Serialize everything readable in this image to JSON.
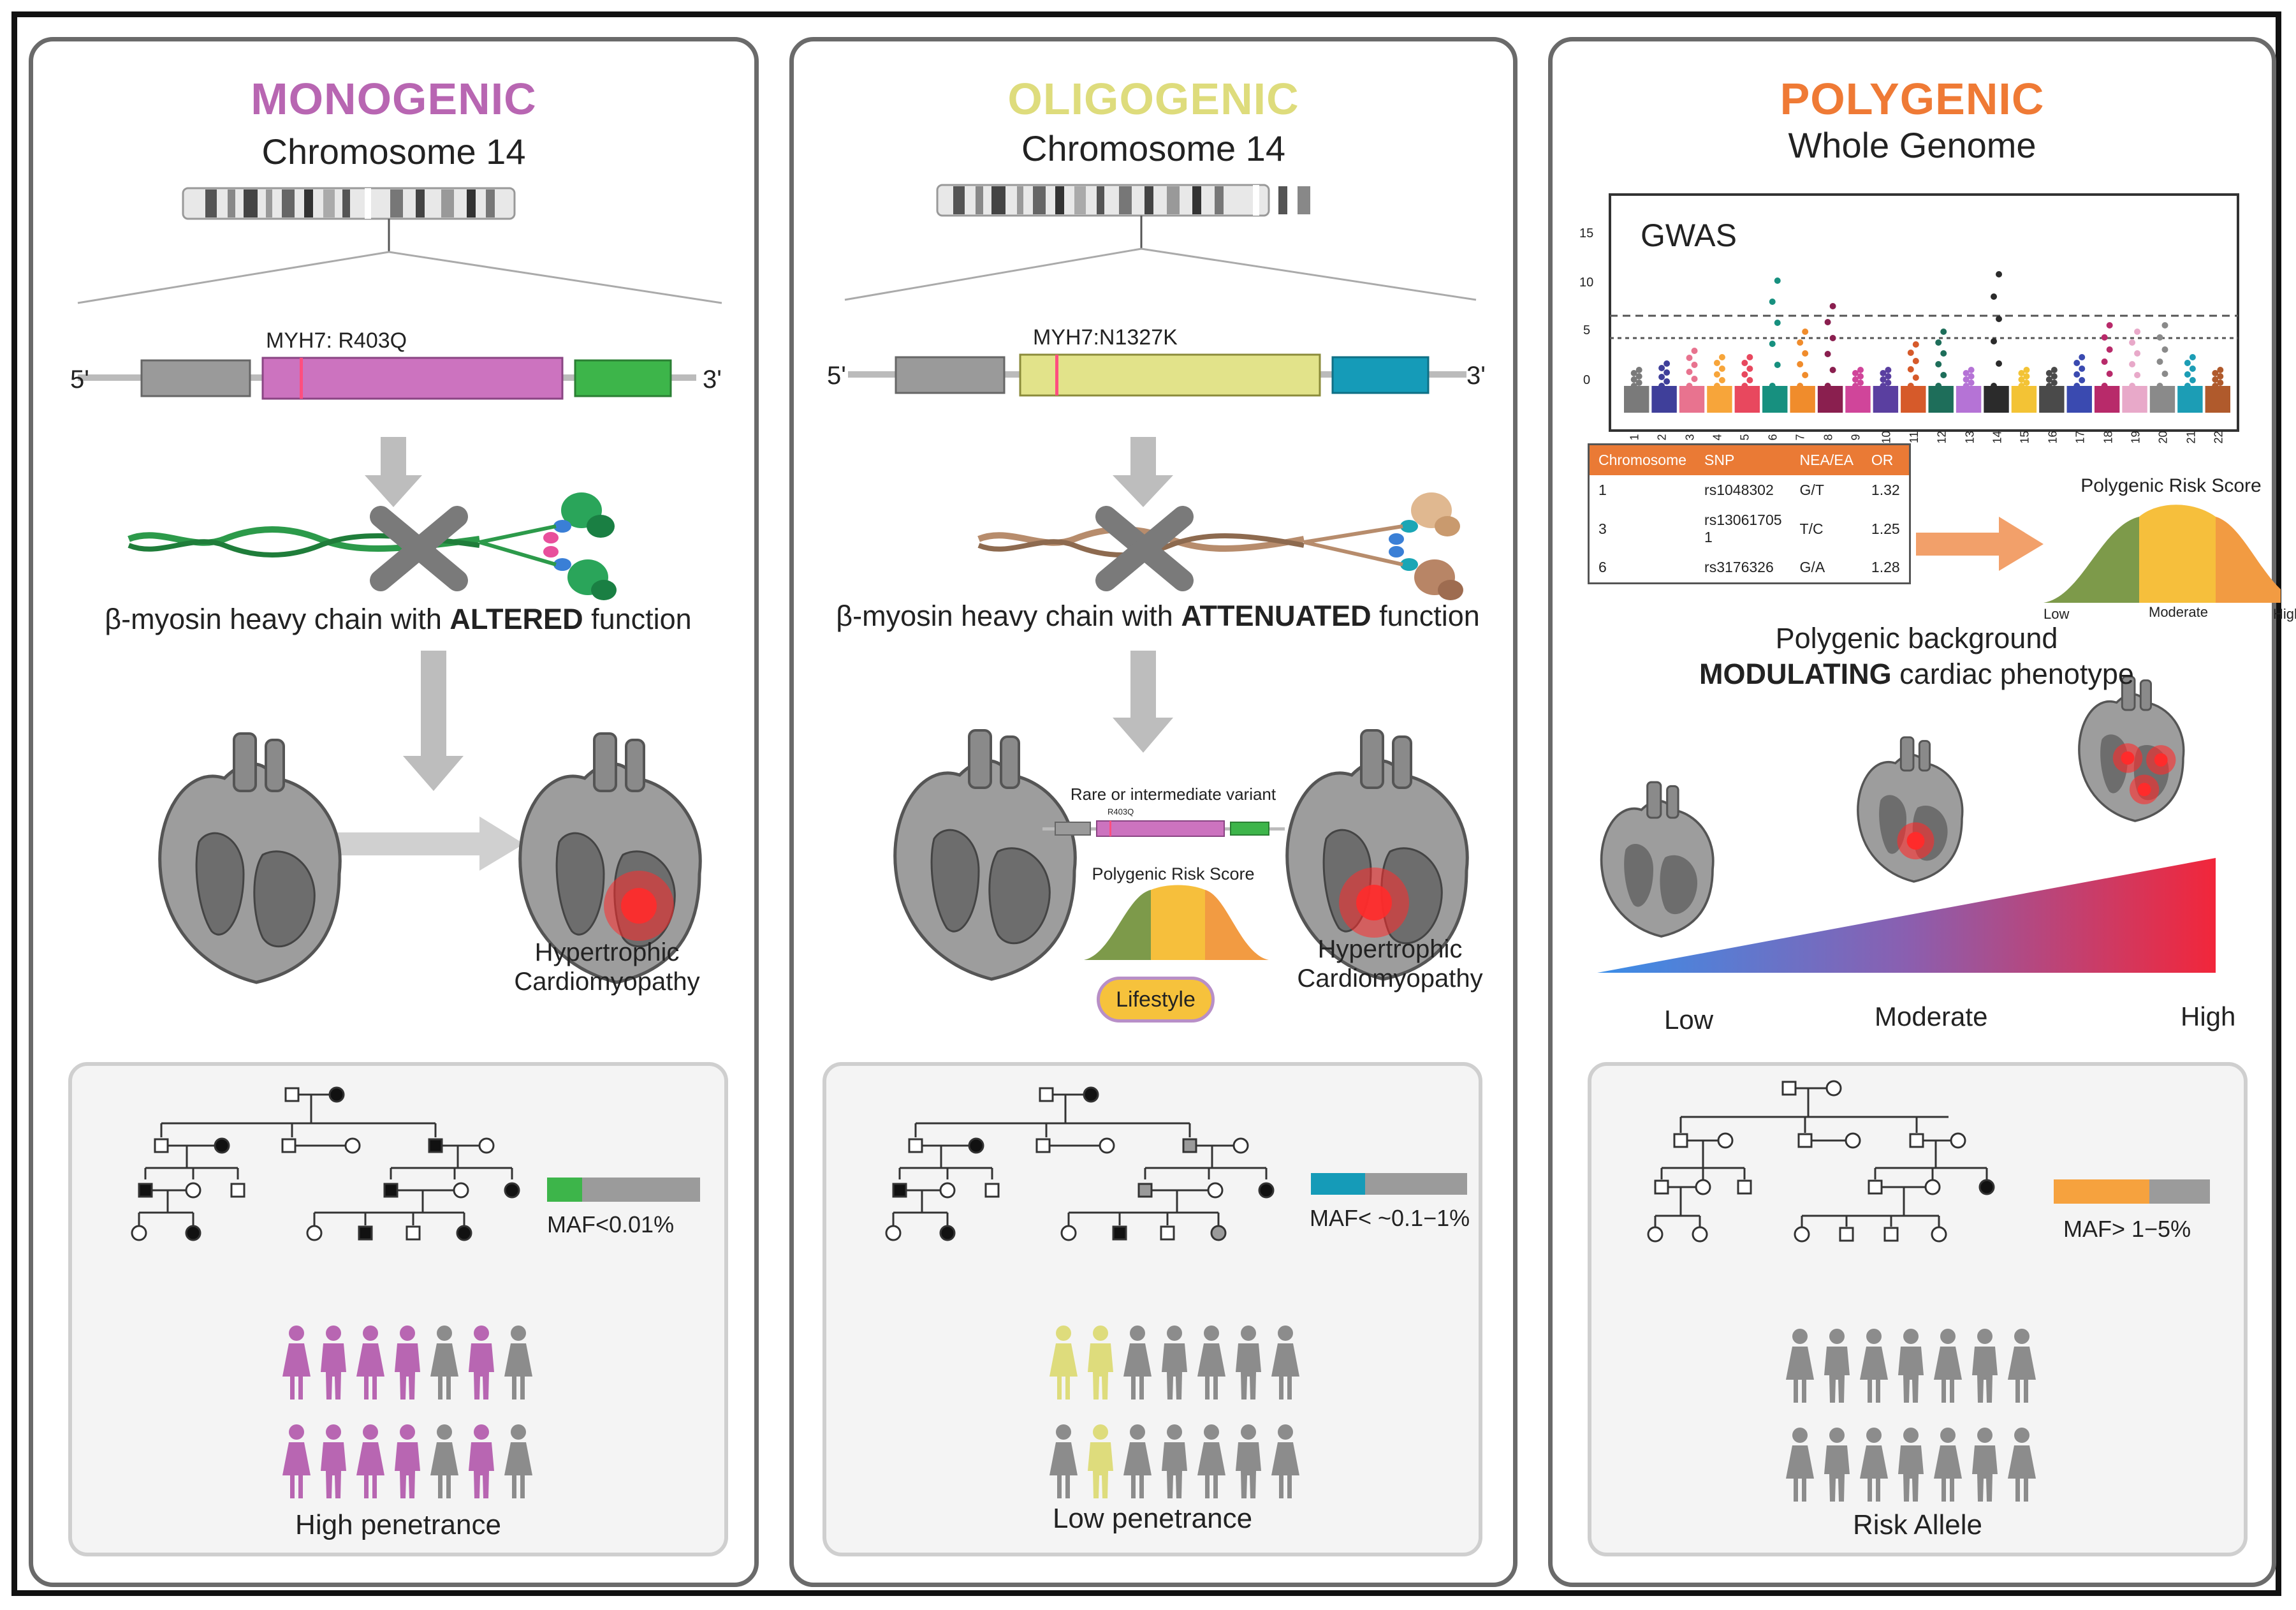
{
  "panels": {
    "monogenic": {
      "title": "MONOGENIC",
      "subtitle": "Chromosome 14",
      "gene_label": "MYH7: R403Q",
      "end5": "5'",
      "end3": "3'",
      "protein_prefix": "β-myosin heavy chain with ",
      "protein_emph": "ALTERED",
      "protein_suffix": " function",
      "outcome": "Hypertrophic",
      "outcome2": "Cardiomyopathy",
      "maf": "MAF<0.01%",
      "penetrance": "High penetrance",
      "colors": {
        "title": "#b866b2",
        "gene": "#cc73bf",
        "utr": "#3db54a",
        "maf": "#3db54a"
      }
    },
    "oligogenic": {
      "title": "OLIGOGENIC",
      "subtitle": "Chromosome 14",
      "gene_label": "MYH7:N1327K",
      "end5": "5'",
      "end3": "3'",
      "protein_prefix": "β-myosin heavy chain with ",
      "protein_emph": "ATTENUATED",
      "protein_suffix": " function",
      "inset_variant": "Rare or intermediate variant",
      "inset_variant_small": "R403Q",
      "inset_prs": "Polygenic Risk Score",
      "lifestyle": "Lifestyle",
      "outcome": "Hypertrophic",
      "outcome2": "Cardiomyopathy",
      "maf": "MAF< ~0.1−1%",
      "penetrance": "Low penetrance",
      "colors": {
        "title": "#dedc7c",
        "gene": "#e2e38a",
        "utr": "#159bb8",
        "maf": "#159bb8"
      }
    },
    "polygenic": {
      "title": "POLYGENIC",
      "subtitle": "Whole Genome",
      "gwas_label": "GWAS",
      "gwas_y_ticks": [
        "15",
        "10",
        "5",
        "0"
      ],
      "gwas_chromosomes": [
        "1",
        "2",
        "3",
        "4",
        "5",
        "6",
        "7",
        "8",
        "9",
        "10",
        "11",
        "12",
        "13",
        "14",
        "15",
        "16",
        "17",
        "18",
        "19",
        "20",
        "21",
        "22"
      ],
      "table": {
        "headers": [
          "Chromosome",
          "SNP",
          "NEA/EA",
          "OR"
        ],
        "rows": [
          [
            "1",
            "rs1048302",
            "G/T",
            "1.32"
          ],
          [
            "3",
            "rs13061705 1",
            "T/C",
            "1.25"
          ],
          [
            "6",
            "rs3176326",
            "G/A",
            "1.28"
          ]
        ]
      },
      "prs_title": "Polygenic Risk Score",
      "prs_low": "Low",
      "prs_moderate": "Moderate",
      "prs_high": "High",
      "background_line1": "Polygenic background",
      "background_emph": "MODULATING",
      "background_line2_suffix": " cardiac phenotype",
      "gradient_low": "Low",
      "gradient_moderate": "Moderate",
      "gradient_high": "High",
      "maf": "MAF> 1−5%",
      "risk_allele": "Risk Allele",
      "colors": {
        "title": "#ef7a35",
        "maf": "#f6a23e"
      }
    }
  }
}
